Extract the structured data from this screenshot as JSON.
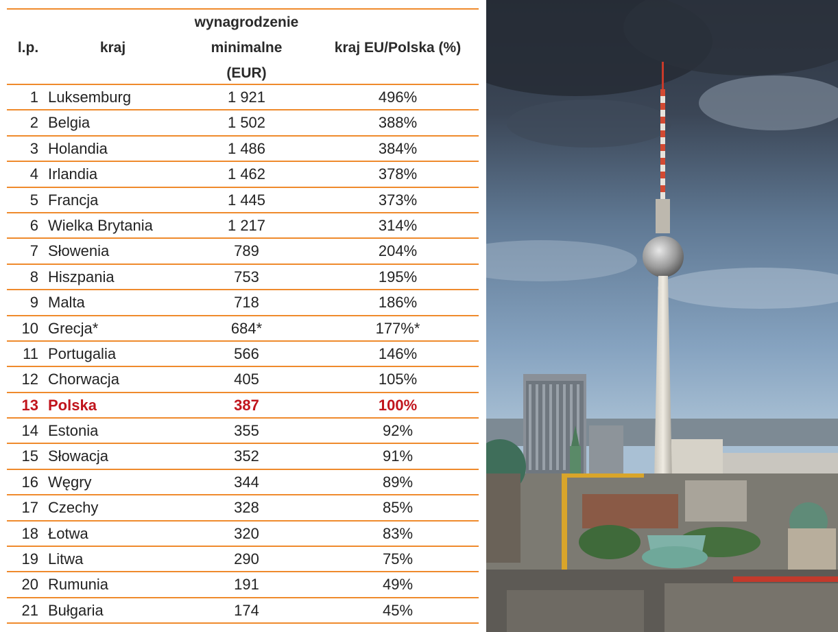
{
  "header": {
    "lp": "l.p.",
    "kraj": "kraj",
    "wage_line1": "wynagrodzenie",
    "wage_line2": "minimalne",
    "wage_line3": "(EUR)",
    "pct": "kraj EU/Polska (%)"
  },
  "rows": [
    {
      "lp": "1",
      "kraj": "Luksemburg",
      "wage": "1 921",
      "pct": "496%"
    },
    {
      "lp": "2",
      "kraj": "Belgia",
      "wage": "1 502",
      "pct": "388%"
    },
    {
      "lp": "3",
      "kraj": "Holandia",
      "wage": "1 486",
      "pct": "384%"
    },
    {
      "lp": "4",
      "kraj": "Irlandia",
      "wage": "1 462",
      "pct": "378%"
    },
    {
      "lp": "5",
      "kraj": "Francja",
      "wage": "1 445",
      "pct": "373%"
    },
    {
      "lp": "6",
      "kraj": "Wielka Brytania",
      "wage": "1 217",
      "pct": "314%"
    },
    {
      "lp": "7",
      "kraj": "Słowenia",
      "wage": "789",
      "pct": "204%"
    },
    {
      "lp": "8",
      "kraj": "Hiszpania",
      "wage": "753",
      "pct": "195%"
    },
    {
      "lp": "9",
      "kraj": "Malta",
      "wage": "718",
      "pct": "186%"
    },
    {
      "lp": "10",
      "kraj": "Grecja*",
      "wage": "684*",
      "pct": "177%*"
    },
    {
      "lp": "11",
      "kraj": "Portugalia",
      "wage": "566",
      "pct": "146%"
    },
    {
      "lp": "12",
      "kraj": "Chorwacja",
      "wage": "405",
      "pct": "105%"
    },
    {
      "lp": "13",
      "kraj": "Polska",
      "wage": "387",
      "pct": "100%",
      "highlight": true
    },
    {
      "lp": "14",
      "kraj": "Estonia",
      "wage": "355",
      "pct": "92%"
    },
    {
      "lp": "15",
      "kraj": "Słowacja",
      "wage": "352",
      "pct": "91%"
    },
    {
      "lp": "16",
      "kraj": "Węgry",
      "wage": "344",
      "pct": "89%"
    },
    {
      "lp": "17",
      "kraj": "Czechy",
      "wage": "328",
      "pct": "85%"
    },
    {
      "lp": "18",
      "kraj": "Łotwa",
      "wage": "320",
      "pct": "83%"
    },
    {
      "lp": "19",
      "kraj": "Litwa",
      "wage": "290",
      "pct": "75%"
    },
    {
      "lp": "20",
      "kraj": "Rumunia",
      "wage": "191",
      "pct": "49%"
    },
    {
      "lp": "21",
      "kraj": "Bułgaria",
      "wage": "174",
      "pct": "45%"
    }
  ],
  "colors": {
    "rule": "#ef8a2c",
    "highlight": "#c0141c"
  },
  "photo": {
    "icon": "tv-tower-photo"
  }
}
